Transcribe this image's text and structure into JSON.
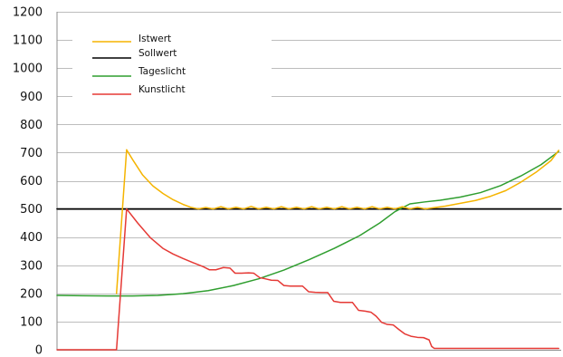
{
  "chart_data": {
    "type": "line",
    "title": "",
    "xlabel": "",
    "ylabel": "",
    "ylim": [
      0,
      1200
    ],
    "xlim": [
      0,
      100
    ],
    "y_ticks": [
      0,
      100,
      200,
      300,
      400,
      500,
      600,
      700,
      800,
      900,
      1000,
      1100,
      1200
    ],
    "grid": "horizontal",
    "legend_position": "top-left",
    "series": [
      {
        "name": "Istwert",
        "color": "#f5b400",
        "points": [
          [
            11.8,
            200
          ],
          [
            13.8,
            710
          ],
          [
            15,
            675
          ],
          [
            17,
            620
          ],
          [
            19,
            582
          ],
          [
            21,
            555
          ],
          [
            23,
            533
          ],
          [
            25,
            516
          ],
          [
            26.5,
            506
          ],
          [
            28,
            500
          ],
          [
            29.5,
            505
          ],
          [
            31,
            500
          ],
          [
            32.5,
            508
          ],
          [
            34,
            500
          ],
          [
            35.5,
            506
          ],
          [
            37,
            500
          ],
          [
            38.5,
            509
          ],
          [
            40,
            500
          ],
          [
            41.5,
            506
          ],
          [
            43,
            500
          ],
          [
            44.5,
            508
          ],
          [
            46,
            500
          ],
          [
            47.5,
            506
          ],
          [
            49,
            500
          ],
          [
            50.5,
            508
          ],
          [
            52,
            500
          ],
          [
            53.5,
            506
          ],
          [
            55,
            500
          ],
          [
            56.5,
            508
          ],
          [
            58,
            500
          ],
          [
            59.5,
            506
          ],
          [
            61,
            500
          ],
          [
            62.5,
            508
          ],
          [
            64,
            500
          ],
          [
            65.5,
            506
          ],
          [
            67,
            500
          ],
          [
            68.5,
            508
          ],
          [
            70,
            500
          ],
          [
            71.5,
            506
          ],
          [
            73,
            500
          ],
          [
            75,
            505
          ],
          [
            77,
            510
          ],
          [
            80,
            520
          ],
          [
            83,
            530
          ],
          [
            86,
            545
          ],
          [
            89,
            565
          ],
          [
            92,
            595
          ],
          [
            95,
            630
          ],
          [
            98,
            672
          ],
          [
            99.5,
            708
          ]
        ]
      },
      {
        "name": "Sollwert",
        "color": "#000000",
        "points": [
          [
            0,
            500
          ],
          [
            100,
            500
          ]
        ]
      },
      {
        "name": "Tageslicht",
        "color": "#2f9e2f",
        "points": [
          [
            0,
            193
          ],
          [
            5,
            192
          ],
          [
            10,
            191
          ],
          [
            15,
            191
          ],
          [
            20,
            193
          ],
          [
            25,
            199
          ],
          [
            30,
            210
          ],
          [
            35,
            228
          ],
          [
            40,
            252
          ],
          [
            45,
            283
          ],
          [
            50,
            320
          ],
          [
            55,
            360
          ],
          [
            60,
            405
          ],
          [
            64,
            450
          ],
          [
            67,
            490
          ],
          [
            70,
            518
          ],
          [
            73,
            525
          ],
          [
            76,
            531
          ],
          [
            80,
            542
          ],
          [
            84,
            558
          ],
          [
            88,
            583
          ],
          [
            92,
            617
          ],
          [
            96,
            657
          ],
          [
            99.5,
            704
          ]
        ]
      },
      {
        "name": "Kunstlicht",
        "color": "#e53935",
        "points": [
          [
            0,
            0
          ],
          [
            11.8,
            0
          ],
          [
            13.8,
            500
          ],
          [
            16,
            450
          ],
          [
            18.5,
            398
          ],
          [
            21,
            360
          ],
          [
            23,
            340
          ],
          [
            25,
            324
          ],
          [
            27,
            309
          ],
          [
            29,
            295
          ],
          [
            30.2,
            284
          ],
          [
            31.5,
            284
          ],
          [
            33,
            292
          ],
          [
            34.3,
            290
          ],
          [
            35.3,
            272
          ],
          [
            36.6,
            272
          ],
          [
            38,
            273
          ],
          [
            39,
            272
          ],
          [
            40.2,
            256
          ],
          [
            41.3,
            252
          ],
          [
            42.5,
            247
          ],
          [
            43.8,
            246
          ],
          [
            45,
            228
          ],
          [
            46.3,
            226
          ],
          [
            47.5,
            226
          ],
          [
            48.7,
            226
          ],
          [
            49.9,
            206
          ],
          [
            51.2,
            204
          ],
          [
            52.5,
            203
          ],
          [
            53.7,
            203
          ],
          [
            54.9,
            172
          ],
          [
            56.2,
            168
          ],
          [
            57.4,
            168
          ],
          [
            58.6,
            168
          ],
          [
            59.8,
            140
          ],
          [
            61.1,
            137
          ],
          [
            62.3,
            133
          ],
          [
            63.3,
            119
          ],
          [
            64.4,
            97
          ],
          [
            65.5,
            90
          ],
          [
            66.7,
            88
          ],
          [
            67.8,
            72
          ],
          [
            69,
            56
          ],
          [
            70.2,
            48
          ],
          [
            71.5,
            44
          ],
          [
            72.7,
            43
          ],
          [
            73.8,
            35
          ],
          [
            74.3,
            12
          ],
          [
            74.8,
            5
          ],
          [
            80,
            5
          ],
          [
            90,
            5
          ],
          [
            99.5,
            5
          ]
        ]
      }
    ]
  }
}
